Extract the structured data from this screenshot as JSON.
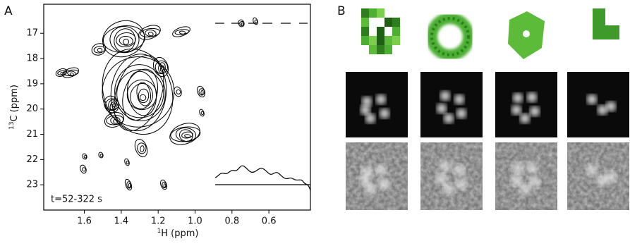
{
  "figure": {
    "panel_a": {
      "label": "A",
      "annotation": "t=52-322 s",
      "xlabel_sup": "1",
      "xlabel": "H (ppm)",
      "ylabel_sup": "13",
      "ylabel": "C (ppm)",
      "xlim": [
        1.82,
        0.375
      ],
      "ylim": [
        15.85,
        24.0
      ],
      "xticks": [
        1.6,
        1.4,
        1.2,
        {
          "value": 1,
          "label": "1.0"
        },
        0.8,
        0.6
      ],
      "yticks": [
        17,
        18,
        19,
        20,
        21,
        22,
        23
      ]
    },
    "panel_b": {
      "label": "B"
    }
  }
}
